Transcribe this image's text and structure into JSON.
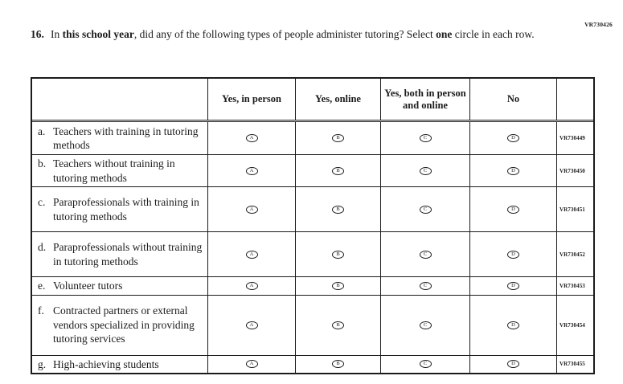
{
  "colors": {
    "ink": "#1b1b1b",
    "background": "#ffffff"
  },
  "top_code": "VR730426",
  "question": {
    "number": "16.",
    "seg1": "In ",
    "seg2_bold": "this school year",
    "seg3": ", did any of the following types of people administer tutoring? Select ",
    "seg4_bold": "one",
    "seg5": " circle in each row."
  },
  "table": {
    "columns": [
      "Yes, in person",
      "Yes, online",
      "Yes, both in person and online",
      "No"
    ],
    "bubble_letters": [
      "A",
      "B",
      "C",
      "D"
    ],
    "rows": [
      {
        "letter": "a.",
        "label": "Teachers with training in tutoring methods",
        "code": "VR730449"
      },
      {
        "letter": "b.",
        "label": "Teachers without training in tutoring methods",
        "code": "VR730450"
      },
      {
        "letter": "c.",
        "label": "Paraprofessionals with training in tutoring methods",
        "code": "VR730451"
      },
      {
        "letter": "d.",
        "label": "Paraprofessionals without training in tutoring methods",
        "code": "VR730452"
      },
      {
        "letter": "e.",
        "label": "Volunteer tutors",
        "code": "VR730453"
      },
      {
        "letter": "f.",
        "label": "Contracted partners or external vendors specialized in providing tutoring services",
        "code": "VR730454"
      },
      {
        "letter": "g.",
        "label": "High-achieving students",
        "code": "VR730455"
      }
    ]
  }
}
